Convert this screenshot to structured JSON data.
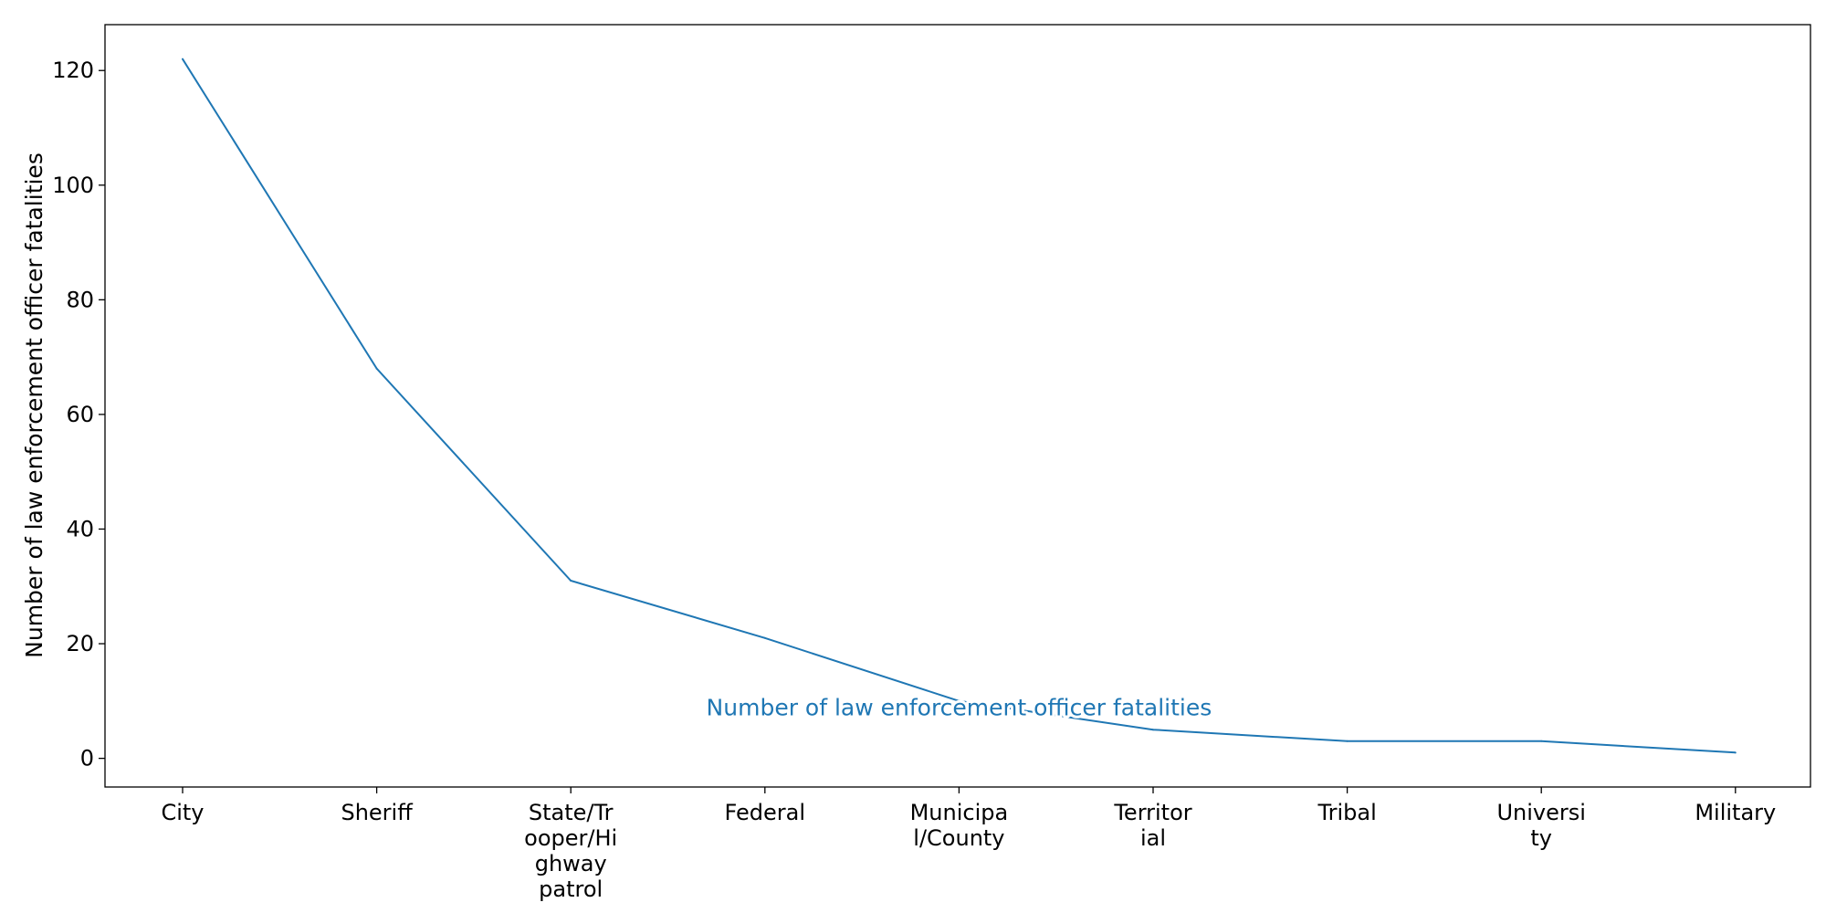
{
  "chart_data": {
    "type": "line",
    "categories": [
      [
        "City"
      ],
      [
        "Sheriff"
      ],
      [
        "State/Tr",
        "ooper/Hi",
        "ghway",
        "patrol"
      ],
      [
        "Federal"
      ],
      [
        "Municipa",
        "l/County"
      ],
      [
        "Territor",
        "ial"
      ],
      [
        "Tribal"
      ],
      [
        "Universi",
        "ty"
      ],
      [
        "Military"
      ]
    ],
    "series": [
      {
        "name": "Number of law enforcement officer fatalities",
        "values": [
          122,
          68,
          31,
          21,
          10,
          5,
          3,
          3,
          1
        ]
      }
    ],
    "title": "",
    "xlabel": "",
    "ylabel": "Number of law enforcement officer fatalities",
    "ylim": [
      -5,
      128
    ],
    "yticks": [
      0,
      20,
      40,
      60,
      80,
      100,
      120
    ],
    "grid": false,
    "legend": "none",
    "series_label_position": "inline-center"
  },
  "colors": {
    "line": "#1f77b4",
    "axis": "#000000",
    "background": "#ffffff"
  }
}
